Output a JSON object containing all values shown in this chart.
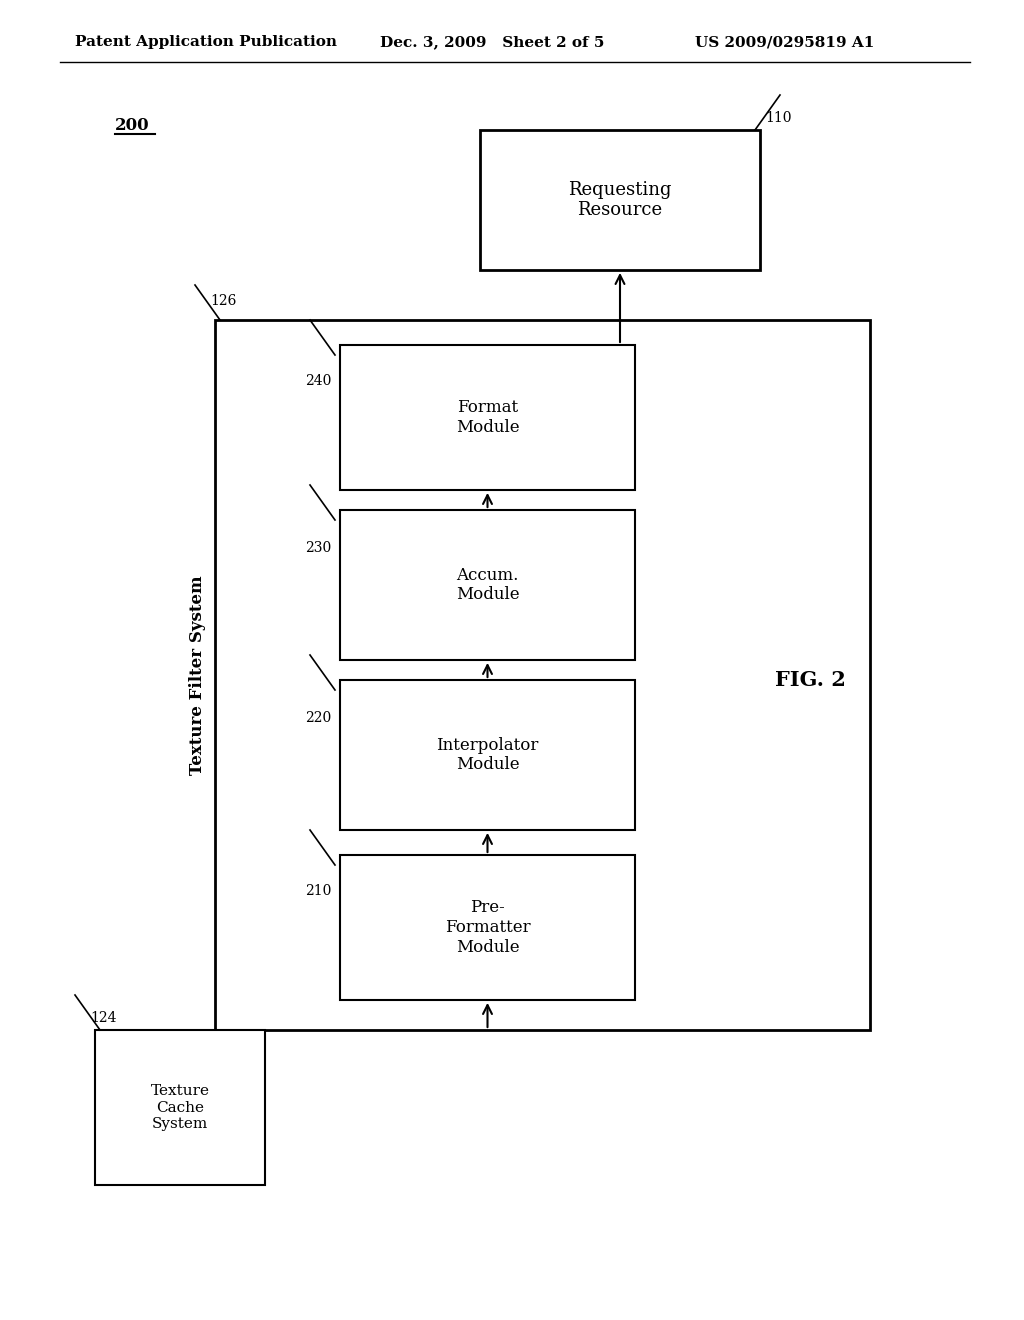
{
  "header_left": "Patent Application Publication",
  "header_mid": "Dec. 3, 2009   Sheet 2 of 5",
  "header_right": "US 2009/0295819 A1",
  "fig_label": "FIG. 2",
  "diagram_label": "200",
  "outer_box_label": "126",
  "outer_box_text": "Texture Filter System",
  "texture_cache_label": "124",
  "texture_cache_text": "Texture\nCache\nSystem",
  "pre_formatter_label": "210",
  "pre_formatter_text": "Pre-\nFormatter\nModule",
  "interpolator_label": "220",
  "interpolator_text": "Interpolator\nModule",
  "accum_label": "230",
  "accum_text": "Accum.\nModule",
  "format_label": "240",
  "format_text": "Format\nModule",
  "requesting_label": "110",
  "requesting_text": "Requesting\nResource",
  "bg_color": "#ffffff",
  "box_edge_color": "#000000",
  "text_color": "#000000",
  "arrow_color": "#000000"
}
